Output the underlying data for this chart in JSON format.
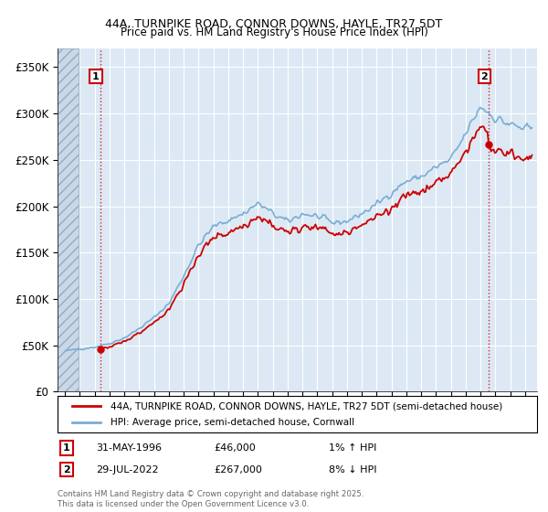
{
  "title": "44A, TURNPIKE ROAD, CONNOR DOWNS, HAYLE, TR27 5DT",
  "subtitle": "Price paid vs. HM Land Registry's House Price Index (HPI)",
  "sale1_year": 1996,
  "sale1_month": 5,
  "sale1_price": 46000,
  "sale2_year": 2022,
  "sale2_month": 7,
  "sale2_price": 267000,
  "hpi_line_color": "#7aadd4",
  "price_line_color": "#cc0000",
  "dot_color": "#cc0000",
  "vline_color": "#cc0000",
  "background_plot": "#dce9f5",
  "background_fig": "#ffffff",
  "grid_color": "#ffffff",
  "legend_label1": "44A, TURNPIKE ROAD, CONNOR DOWNS, HAYLE, TR27 5DT (semi-detached house)",
  "legend_label2": "HPI: Average price, semi-detached house, Cornwall",
  "annotation1_date": "31-MAY-1996",
  "annotation1_price": "£46,000",
  "annotation1_hpi": "1% ↑ HPI",
  "annotation2_date": "29-JUL-2022",
  "annotation2_price": "£267,000",
  "annotation2_hpi": "8% ↓ HPI",
  "footer": "Contains HM Land Registry data © Crown copyright and database right 2025.\nThis data is licensed under the Open Government Licence v3.0.",
  "ylim": [
    0,
    370000
  ],
  "yticks": [
    0,
    50000,
    100000,
    150000,
    200000,
    250000,
    300000,
    350000
  ],
  "ytick_labels": [
    "£0",
    "£50K",
    "£100K",
    "£150K",
    "£200K",
    "£250K",
    "£300K",
    "£350K"
  ],
  "xlim_start": 1993.5,
  "xlim_end": 2025.8
}
